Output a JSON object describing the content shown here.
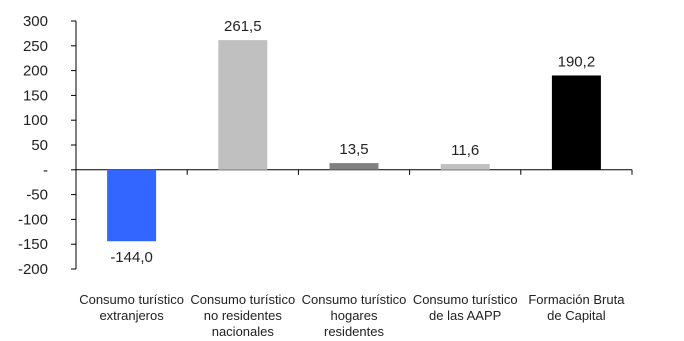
{
  "chart_data": {
    "type": "bar",
    "categories": [
      [
        "Consumo turístico",
        "extranjeros"
      ],
      [
        "Consumo turístico",
        "no residentes",
        "nacionales"
      ],
      [
        "Consumo turístico",
        "hogares",
        "residentes"
      ],
      [
        "Consumo turístico",
        "de las AAPP"
      ],
      [
        "Formación Bruta",
        "de Capital"
      ]
    ],
    "values": [
      -144.0,
      261.5,
      13.5,
      11.6,
      190.2
    ],
    "data_labels": [
      "-144,0",
      "261,5",
      "13,5",
      "11,6",
      "190,2"
    ],
    "bar_colors": [
      "#3366ff",
      "#c0c0c0",
      "#808080",
      "#c0c0c0",
      "#000000"
    ],
    "ylim": [
      -200,
      300
    ],
    "yticks": [
      300,
      250,
      200,
      150,
      100,
      50,
      0,
      -50,
      -100,
      -150,
      -200
    ],
    "ytick_labels": [
      "300",
      "250",
      "200",
      "150",
      "100",
      "50",
      "-",
      "-50",
      "-100",
      "-150",
      "-200"
    ],
    "grid": false,
    "title": "",
    "xlabel": "",
    "ylabel": ""
  }
}
